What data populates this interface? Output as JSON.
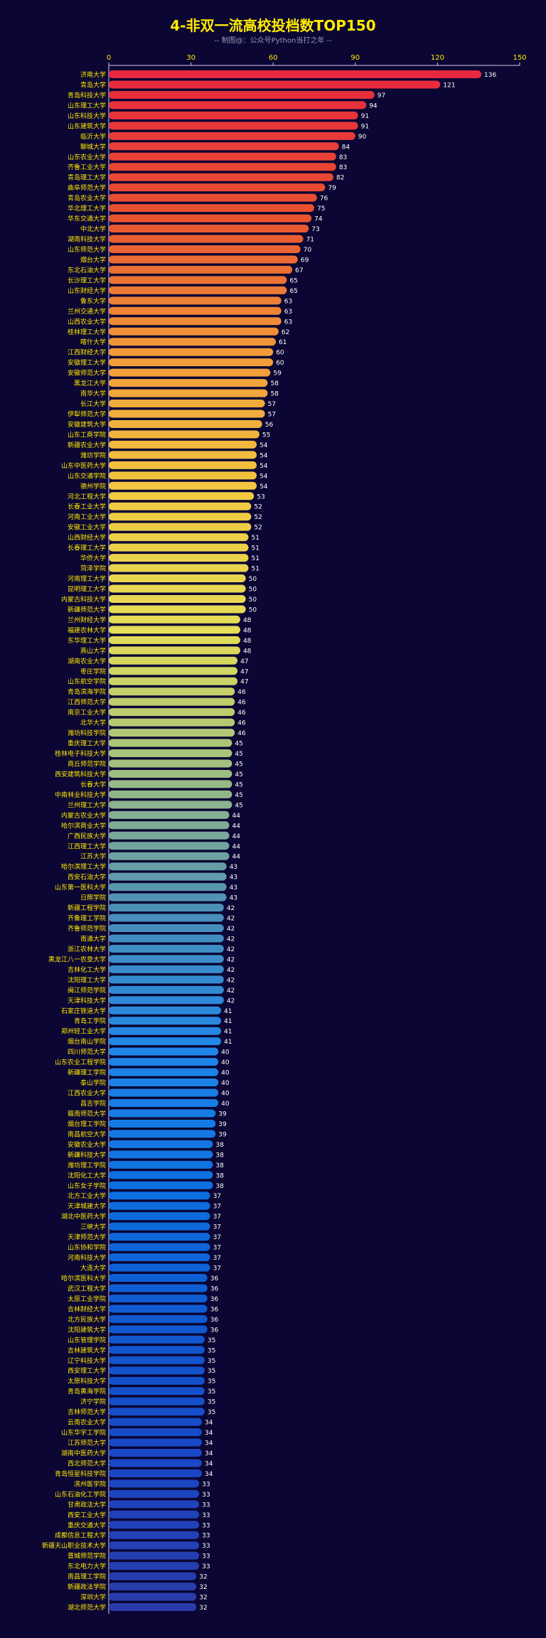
{
  "chart_data": {
    "type": "bar",
    "orientation": "horizontal",
    "title": "4-非双一流高校投档数TOP150",
    "subtitle": "-- 制图@：公众号Python当打之年 --",
    "xlim": [
      0,
      150
    ],
    "xticks": [
      0,
      30,
      60,
      90,
      120,
      150
    ],
    "grid": false,
    "colors": {
      "background": "#0b0633",
      "title": "#ffea00",
      "axis": "#cfcfe8",
      "gradient_top": [
        "#e8293f",
        "#e9522f",
        "#f19a3a",
        "#f2c840",
        "#e3dd58",
        "#9fbf80",
        "#4a8fb8",
        "#1f86e8",
        "#0d6fe0",
        "#0f58cf",
        "#1a46c4",
        "#2a3ba8"
      ]
    },
    "categories": [
      "济南大学",
      "青岛大学",
      "青岛科技大学",
      "山东理工大学",
      "山东科技大学",
      "山东建筑大学",
      "临沂大学",
      "聊城大学",
      "山东农业大学",
      "齐鲁工业大学",
      "青岛理工大学",
      "曲阜师范大学",
      "青岛农业大学",
      "华北理工大学",
      "华东交通大学",
      "中北大学",
      "湖南科技大学",
      "山东师范大学",
      "烟台大学",
      "东北石油大学",
      "长沙理工大学",
      "山东财经大学",
      "鲁东大学",
      "兰州交通大学",
      "山西农业大学",
      "桂林理工大学",
      "喀什大学",
      "江西财经大学",
      "安徽理工大学",
      "安徽师范大学",
      "黑龙江大学",
      "南华大学",
      "长江大学",
      "伊犁师范大学",
      "安徽建筑大学",
      "山东工商学院",
      "新疆农业大学",
      "潍坊学院",
      "山东中医药大学",
      "山东交通学院",
      "德州学院",
      "河北工程大学",
      "长春工业大学",
      "河南工业大学",
      "安徽工业大学",
      "山西财经大学",
      "长春理工大学",
      "华侨大学",
      "菏泽学院",
      "河南理工大学",
      "昆明理工大学",
      "内蒙古科技大学",
      "新疆师范大学",
      "兰州财经大学",
      "福建农林大学",
      "东华理工大学",
      "燕山大学",
      "湖南农业大学",
      "枣庄学院",
      "山东航空学院",
      "青岛滨海学院",
      "江西师范大学",
      "南京工业大学",
      "北华大学",
      "潍坊科技学院",
      "重庆理工大学",
      "桂林电子科技大学",
      "商丘师范学院",
      "西安建筑科技大学",
      "长春大学",
      "中南林业科技大学",
      "兰州理工大学",
      "内蒙古农业大学",
      "哈尔滨商业大学",
      "广西民族大学",
      "江西理工大学",
      "江苏大学",
      "哈尔滨理工大学",
      "西安石油大学",
      "山东第一医科大学",
      "日照学院",
      "新疆工程学院",
      "齐鲁理工学院",
      "齐鲁师范学院",
      "南通大学",
      "浙江农林大学",
      "黑龙江八一农垦大学",
      "吉林化工大学",
      "沈阳理工大学",
      "闽江师范学院",
      "天津科技大学",
      "石家庄铁道大学",
      "青岛工学院",
      "郑州轻工业大学",
      "烟台南山学院",
      "四川师范大学",
      "山东农业工程学院",
      "新疆理工学院",
      "泰山学院",
      "江西农业大学",
      "昌吉学院",
      "赣南师范大学",
      "烟台理工学院",
      "南昌航空大学",
      "安徽农业大学",
      "新疆科技大学",
      "潍坊理工学院",
      "沈阳化工大学",
      "山东女子学院",
      "北方工业大学",
      "天津城建大学",
      "湖北中医药大学",
      "三峡大学",
      "天津师范大学",
      "山东协和学院",
      "河南科技大学",
      "大连大学",
      "哈尔滨医科大学",
      "武汉工程大学",
      "太原工业学院",
      "吉林财经大学",
      "北方民族大学",
      "沈阳建筑大学",
      "山东管理学院",
      "吉林建筑大学",
      "辽宁科技大学",
      "西安理工大学",
      "太原科技大学",
      "青岛黄海学院",
      "济宁学院",
      "吉林师范大学",
      "云南农业大学",
      "山东华宇工学院",
      "江苏师范大学",
      "湖南中医药大学",
      "西北师范大学",
      "青岛恒星科技学院",
      "滨州医学院",
      "山东石油化工学院",
      "甘肃政法大学",
      "西安工业大学",
      "重庆交通大学",
      "成都信息工程大学",
      "新疆天山职业技术大学",
      "晋城师范学院",
      "东北电力大学",
      "南昌理工学院",
      "新疆政法学院",
      "深圳大学",
      "湖北师范大学"
    ],
    "values": [
      136,
      121,
      97,
      94,
      91,
      91,
      90,
      84,
      83,
      83,
      82,
      79,
      76,
      75,
      74,
      73,
      71,
      70,
      69,
      67,
      65,
      65,
      63,
      63,
      63,
      62,
      61,
      60,
      60,
      59,
      58,
      58,
      57,
      57,
      56,
      55,
      54,
      54,
      54,
      54,
      54,
      53,
      52,
      52,
      52,
      51,
      51,
      51,
      51,
      50,
      50,
      50,
      50,
      48,
      48,
      48,
      48,
      47,
      47,
      47,
      46,
      46,
      46,
      46,
      46,
      45,
      45,
      45,
      45,
      45,
      45,
      45,
      44,
      44,
      44,
      44,
      44,
      43,
      43,
      43,
      43,
      42,
      42,
      42,
      42,
      42,
      42,
      42,
      42,
      42,
      42,
      41,
      41,
      41,
      41,
      40,
      40,
      40,
      40,
      40,
      40,
      39,
      39,
      39,
      38,
      38,
      38,
      38,
      38,
      37,
      37,
      37,
      37,
      37,
      37,
      37,
      37,
      36,
      36,
      36,
      36,
      36,
      36,
      35,
      35,
      35,
      35,
      35,
      35,
      35,
      35,
      34,
      34,
      34,
      34,
      34,
      34,
      33,
      33,
      33,
      33,
      33,
      33,
      33,
      33,
      33,
      32,
      32,
      32,
      32
    ]
  }
}
